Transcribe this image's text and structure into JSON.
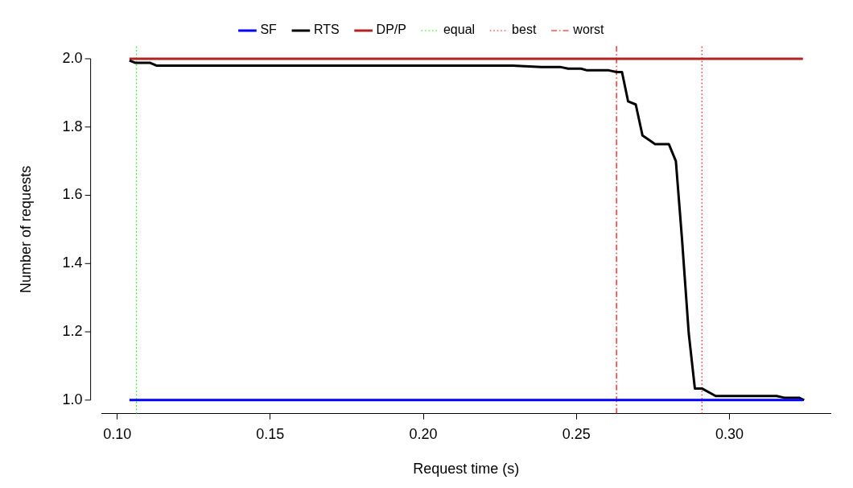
{
  "chart_data": {
    "type": "line",
    "xlabel": "Request time (s)",
    "ylabel": "Number of requests",
    "xlim": [
      0.095,
      0.333
    ],
    "ylim": [
      0.96,
      2.04
    ],
    "xticks": [
      {
        "value": 0.1,
        "label": "0.10"
      },
      {
        "value": 0.15,
        "label": "0.15"
      },
      {
        "value": 0.2,
        "label": "0.20"
      },
      {
        "value": 0.25,
        "label": "0.25"
      },
      {
        "value": 0.3,
        "label": "0.30"
      }
    ],
    "yticks": [
      {
        "value": 1,
        "label": "1.0"
      },
      {
        "value": 1.2,
        "label": "1.2"
      },
      {
        "value": 1.4,
        "label": "1.4"
      },
      {
        "value": 1.6,
        "label": "1.6"
      },
      {
        "value": 1.8,
        "label": "1.8"
      },
      {
        "value": 2,
        "label": "2.0"
      }
    ],
    "grid": false,
    "legend": "top",
    "marker": "none",
    "series": [
      {
        "name": "SF",
        "color": "#0000ff",
        "x": [
          0.104,
          0.324
        ],
        "values": [
          1,
          1
        ]
      },
      {
        "name": "RTS",
        "color": "#000000",
        "x": [
          0.104,
          0.106,
          0.1108,
          0.1128,
          0.2292,
          0.2385,
          0.2447,
          0.2473,
          0.2515,
          0.2535,
          0.2606,
          0.2631,
          0.2649,
          0.2669,
          0.2694,
          0.2716,
          0.2744,
          0.2757,
          0.2802,
          0.2825,
          0.2845,
          0.2867,
          0.2887,
          0.291,
          0.2955,
          0.3154,
          0.3179,
          0.3227,
          0.3244
        ],
        "values": [
          1.995,
          1.988,
          1.988,
          1.98,
          1.98,
          1.976,
          1.976,
          1.971,
          1.971,
          1.966,
          1.966,
          1.961,
          1.961,
          1.875,
          1.866,
          1.775,
          1.758,
          1.75,
          1.75,
          1.7,
          1.472,
          1.196,
          1.034,
          1.034,
          1.012,
          1.012,
          1.007,
          1.007,
          1.0
        ]
      },
      {
        "name": "DP/P",
        "color": "#b22222",
        "x": [
          0.104,
          0.324
        ],
        "values": [
          2,
          2
        ]
      }
    ],
    "ref_lines": [
      {
        "axis": "x",
        "value": 0.1063,
        "label": "equal",
        "color": "#00ff00",
        "line_style": "dotted"
      },
      {
        "axis": "x",
        "value": 0.291,
        "label": "best",
        "color": "#ff0000",
        "line_style": "dotted"
      },
      {
        "axis": "x",
        "value": 0.2631,
        "label": "worst",
        "color": "#ff0000",
        "line_style": "dashed"
      }
    ]
  }
}
